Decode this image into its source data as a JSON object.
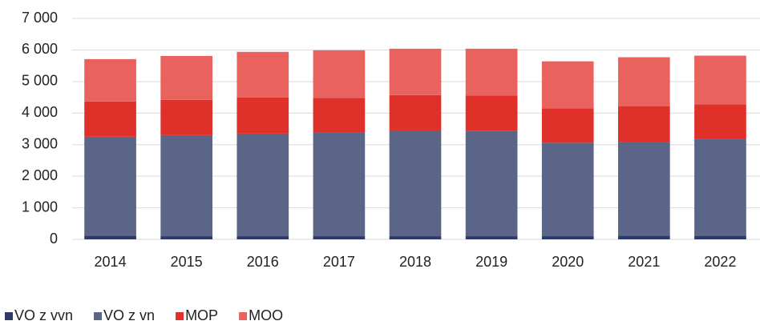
{
  "chart_data": {
    "type": "stacked_bar",
    "categories": [
      "2014",
      "2015",
      "2016",
      "2017",
      "2018",
      "2019",
      "2020",
      "2021",
      "2022"
    ],
    "series": [
      {
        "name": "VO z vvn",
        "color": "#2e3a6a",
        "values": [
          120,
          100,
          100,
          100,
          100,
          100,
          100,
          120,
          120
        ]
      },
      {
        "name": "VO z vn",
        "color": "#5b6587",
        "values": [
          3130,
          3200,
          3250,
          3275,
          3350,
          3340,
          2960,
          2960,
          3060
        ]
      },
      {
        "name": "MOP",
        "color": "#e0302a",
        "values": [
          1115,
          1115,
          1140,
          1105,
          1120,
          1120,
          1090,
          1140,
          1100
        ]
      },
      {
        "name": "MOO",
        "color": "#ea625d",
        "values": [
          1345,
          1395,
          1450,
          1510,
          1470,
          1480,
          1490,
          1550,
          1540
        ]
      }
    ],
    "ylim": [
      0,
      7000
    ],
    "yticks": [
      0,
      {
        "value": 1000,
        "label": "1 000"
      },
      {
        "value": 2000,
        "label": "2 000"
      },
      {
        "value": 3000,
        "label": "3 000"
      },
      {
        "value": 4000,
        "label": "4 000"
      },
      {
        "value": 5000,
        "label": "5 000"
      },
      {
        "value": 6000,
        "label": "6 000"
      },
      {
        "value": 7000,
        "label": "7 000"
      }
    ],
    "grid": true,
    "legend": "bottom-left"
  }
}
